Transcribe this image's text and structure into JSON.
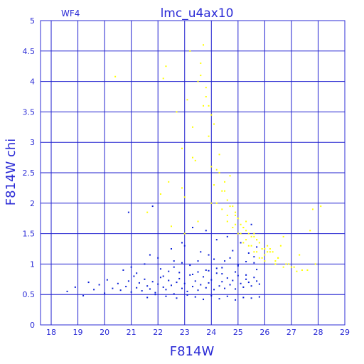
{
  "chart_data": {
    "type": "scatter",
    "title": "lmc_u4ax10",
    "chip_label": "WF4",
    "xlabel": "F814W",
    "ylabel": "F814W  chi",
    "xlim": [
      17.6,
      29
    ],
    "ylim": [
      0,
      5
    ],
    "xticks": [
      "18",
      "19",
      "20",
      "21",
      "22",
      "23",
      "24",
      "25",
      "26",
      "27",
      "28",
      "29"
    ],
    "yticks": [
      "0",
      "0.5",
      "1",
      "1.5",
      "2",
      "2.5",
      "3",
      "3.5",
      "4",
      "4.5",
      "5"
    ],
    "grid": true,
    "colors": {
      "axis": "#2b2bd6",
      "grid": "#1f1fcf",
      "good": "#0a1fd6",
      "rejected": "#ffff00"
    },
    "series": [
      {
        "name": "",
        "color": "#0a1fd6",
        "x": [
          18.6,
          18.9,
          19.2,
          19.4,
          19.6,
          19.8,
          20.0,
          20.1,
          20.3,
          20.5,
          20.6,
          20.8,
          20.9,
          21.0,
          21.1,
          21.2,
          21.3,
          21.4,
          21.5,
          21.6,
          21.7,
          21.8,
          21.9,
          22.0,
          22.1,
          22.2,
          22.3,
          22.4,
          22.5,
          22.6,
          22.7,
          22.8,
          22.9,
          23.0,
          23.1,
          23.2,
          23.3,
          23.4,
          23.5,
          23.6,
          23.7,
          23.8,
          23.9,
          24.0,
          24.1,
          24.2,
          24.3,
          24.4,
          24.5,
          24.6,
          24.7,
          24.8,
          24.9,
          25.0,
          25.1,
          25.2,
          25.3,
          25.4,
          25.5,
          25.6,
          25.7,
          25.8,
          22.1,
          22.4,
          22.6,
          22.9,
          23.2,
          23.5,
          23.8,
          24.1,
          24.4,
          24.7,
          25.0,
          25.3,
          25.6,
          21.6,
          21.9,
          22.3,
          22.7,
          23.1,
          23.4,
          23.7,
          24.0,
          24.3,
          24.6,
          24.9,
          25.2,
          25.5,
          25.8,
          20.7,
          21.2,
          21.5,
          22.0,
          22.5,
          23.0,
          23.3,
          23.6,
          23.9,
          24.2,
          24.5,
          24.8,
          25.1,
          25.4,
          25.7,
          22.2,
          22.8,
          23.3,
          23.9,
          24.4,
          24.9,
          25.3,
          25.7,
          21.0,
          21.7,
          22.9,
          23.8,
          24.6,
          25.5,
          20.9,
          21.8,
          22.6,
          23.5,
          24.2,
          25.0,
          25.6
        ],
        "y": [
          0.55,
          0.62,
          0.48,
          0.7,
          0.58,
          0.66,
          0.52,
          0.74,
          0.6,
          0.68,
          0.57,
          0.63,
          0.72,
          0.54,
          0.8,
          0.61,
          0.69,
          0.56,
          0.75,
          0.64,
          0.59,
          0.71,
          0.53,
          0.67,
          0.78,
          0.62,
          0.58,
          0.73,
          0.65,
          0.51,
          0.7,
          0.76,
          0.6,
          0.68,
          0.55,
          0.82,
          0.63,
          0.72,
          0.57,
          0.66,
          0.79,
          0.61,
          0.69,
          0.74,
          0.58,
          0.85,
          0.64,
          0.71,
          0.6,
          0.77,
          0.66,
          0.73,
          0.59,
          0.81,
          0.68,
          0.62,
          0.75,
          0.7,
          0.64,
          0.78,
          0.72,
          0.67,
          0.92,
          0.88,
          0.95,
          1.02,
          0.98,
          1.05,
          0.9,
          1.08,
          0.94,
          1.1,
          0.97,
          1.04,
          1.12,
          0.45,
          0.5,
          0.47,
          0.44,
          0.49,
          0.46,
          0.42,
          0.48,
          0.43,
          0.47,
          0.41,
          0.45,
          0.44,
          0.46,
          0.9,
          0.85,
          1.0,
          1.1,
          1.25,
          1.3,
          1.6,
          1.2,
          1.15,
          1.4,
          1.05,
          1.22,
          1.35,
          1.18,
          1.28,
          0.8,
          0.86,
          0.83,
          0.89,
          0.84,
          0.87,
          0.82,
          0.91,
          0.95,
          1.15,
          1.35,
          1.55,
          1.45,
          1.65,
          1.85,
          1.95,
          1.05,
          0.87,
          0.93,
          0.99,
          1.02
        ]
      },
      {
        "name": "",
        "color": "#ffff00",
        "x": [
          20.4,
          21.6,
          22.2,
          22.3,
          22.5,
          22.7,
          22.9,
          23.0,
          23.1,
          23.2,
          23.3,
          23.4,
          23.5,
          23.6,
          23.7,
          23.8,
          23.9,
          24.0,
          24.1,
          24.2,
          24.3,
          24.4,
          24.5,
          24.6,
          24.7,
          24.8,
          24.9,
          25.0,
          25.1,
          25.2,
          25.3,
          25.4,
          25.5,
          25.6,
          25.7,
          25.8,
          25.9,
          26.0,
          26.1,
          26.3,
          26.5,
          26.7,
          26.9,
          27.1,
          27.3,
          27.6,
          27.9,
          23.8,
          23.9,
          24.0,
          23.7,
          23.6,
          24.1,
          24.3,
          24.5,
          24.6,
          24.8,
          25.0,
          25.2,
          25.4,
          25.6,
          25.8,
          26.0,
          26.2,
          26.4,
          26.6,
          26.8,
          27.0,
          27.4,
          27.7,
          28.1,
          22.1,
          22.4,
          23.0,
          23.5,
          24.0,
          24.4,
          24.9,
          25.3,
          25.7,
          26.2,
          24.6,
          24.9,
          25.1,
          25.3,
          25.5,
          25.7,
          25.9,
          26.1,
          26.4,
          26.7,
          22.9,
          23.3,
          24.2,
          24.7,
          25.2,
          25.6,
          26.0,
          26.5,
          27.2,
          27.8
        ],
        "y": [
          4.08,
          1.85,
          4.05,
          4.25,
          1.62,
          3.5,
          2.9,
          2.1,
          3.7,
          4.5,
          3.25,
          2.7,
          4.0,
          4.3,
          3.6,
          3.9,
          3.1,
          2.6,
          2.3,
          2.0,
          2.8,
          1.9,
          2.2,
          1.7,
          2.45,
          1.6,
          1.8,
          1.5,
          1.65,
          1.35,
          1.55,
          1.3,
          1.45,
          1.2,
          1.4,
          1.1,
          1.25,
          1.05,
          1.3,
          1.2,
          1.1,
          1.45,
          1.0,
          0.95,
          1.15,
          0.9,
          1.0,
          3.75,
          3.6,
          3.45,
          4.6,
          4.1,
          3.3,
          2.5,
          2.35,
          2.05,
          1.95,
          1.75,
          1.6,
          1.5,
          1.45,
          1.35,
          1.15,
          1.25,
          1.05,
          1.3,
          1.0,
          0.95,
          0.9,
          1.55,
          1.95,
          2.15,
          2.35,
          1.5,
          1.7,
          2.0,
          2.2,
          1.85,
          1.7,
          1.4,
          1.2,
          1.8,
          1.65,
          1.5,
          1.4,
          1.3,
          1.2,
          1.1,
          1.2,
          1.0,
          0.95,
          2.25,
          2.75,
          2.55,
          1.95,
          1.6,
          1.5,
          1.25,
          1.1,
          0.88,
          1.9
        ]
      }
    ]
  }
}
